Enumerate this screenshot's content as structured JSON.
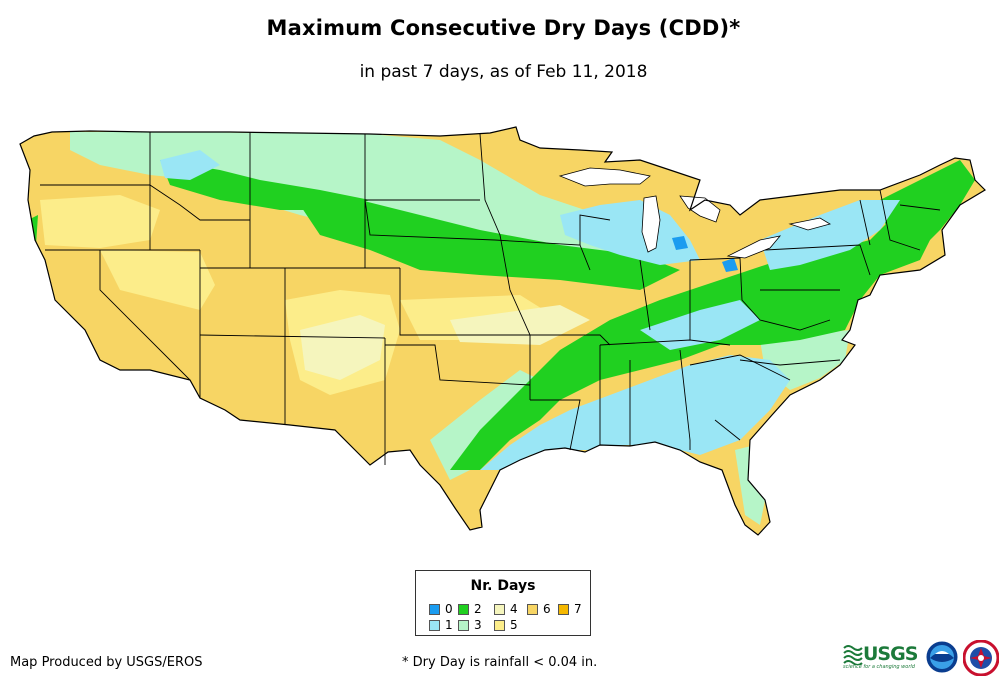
{
  "title": "Maximum Consecutive Dry Days (CDD)*",
  "subtitle": "in past 7 days, as of Feb 11, 2018",
  "legend": {
    "title": "Nr. Days",
    "items": [
      {
        "label": "0",
        "color": "#1a9cf0"
      },
      {
        "label": "1",
        "color": "#9ae6f5"
      },
      {
        "label": "2",
        "color": "#20d020"
      },
      {
        "label": "3",
        "color": "#b6f5c8"
      },
      {
        "label": "4",
        "color": "#f5f5bd"
      },
      {
        "label": "5",
        "color": "#fced8a"
      },
      {
        "label": "6",
        "color": "#f7d564"
      },
      {
        "label": "7",
        "color": "#f5b800"
      }
    ]
  },
  "credit": "Map Produced by USGS/EROS",
  "footnote": "* Dry Day is rainfall < 0.04 in.",
  "logos": {
    "usgs_text": "USGS",
    "usgs_tagline": "science for a changing world",
    "noaa_text": "NOAA",
    "nws_text": "NWS"
  }
}
